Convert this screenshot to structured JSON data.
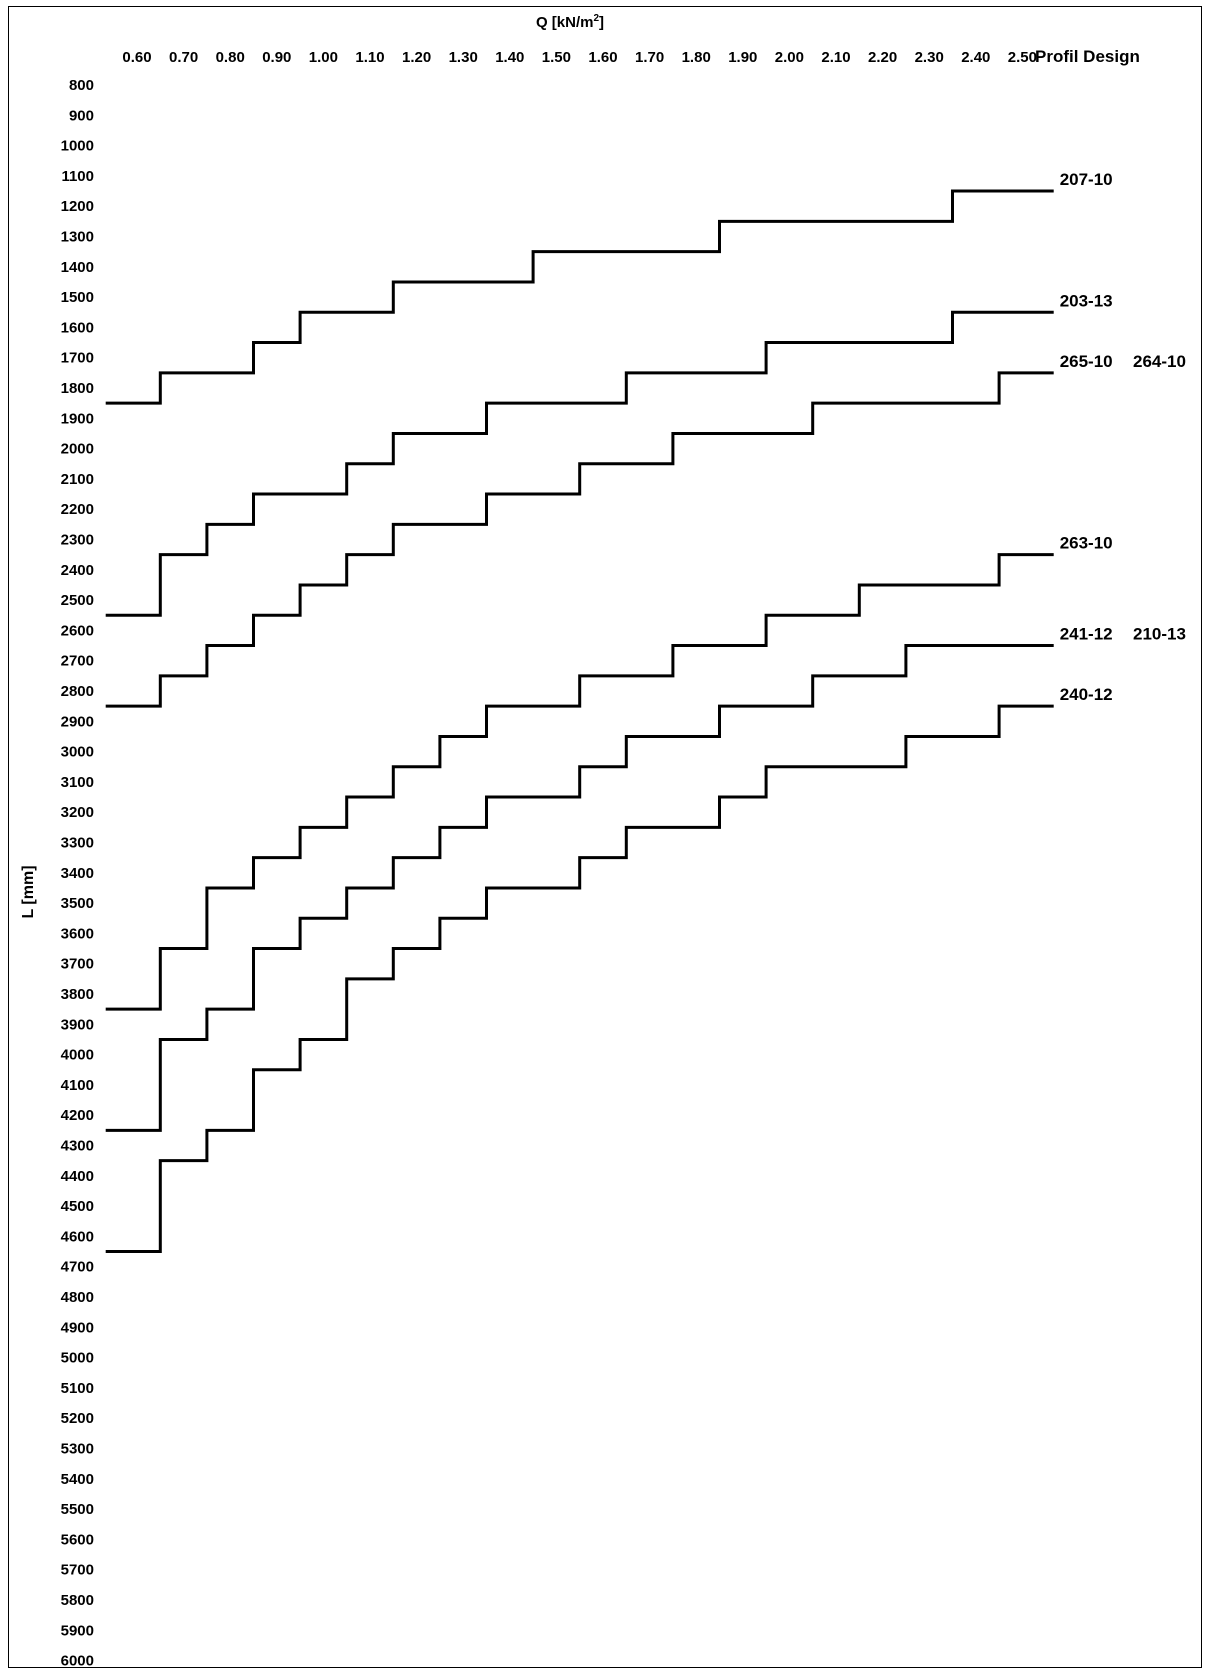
{
  "chart_data": {
    "type": "line",
    "step": true,
    "title": "Q [kN/m2]",
    "xlabel": "Q [kN/m2]",
    "ylabel": "L [mm]",
    "y_axis_inverted": true,
    "x_ticks": [
      0.6,
      0.7,
      0.8,
      0.9,
      1.0,
      1.1,
      1.2,
      1.3,
      1.4,
      1.5,
      1.6,
      1.7,
      1.8,
      1.9,
      2.0,
      2.1,
      2.2,
      2.3,
      2.4,
      2.5
    ],
    "x_tick_labels": [
      "0.60",
      "0.70",
      "0.80",
      "0.90",
      "1.00",
      "1.10",
      "1.20",
      "1.30",
      "1.40",
      "1.50",
      "1.60",
      "1.70",
      "1.80",
      "1.90",
      "2.00",
      "2.10",
      "2.20",
      "2.30",
      "2.40",
      "2.50"
    ],
    "y_ticks": [
      800,
      900,
      1000,
      1100,
      1200,
      1300,
      1400,
      1500,
      1600,
      1700,
      1800,
      1900,
      2000,
      2100,
      2200,
      2300,
      2400,
      2500,
      2600,
      2700,
      2800,
      2900,
      3000,
      3100,
      3200,
      3300,
      3400,
      3500,
      3600,
      3700,
      3800,
      3900,
      4000,
      4100,
      4200,
      4300,
      4400,
      4500,
      4600,
      4700,
      4800,
      4900,
      5000,
      5100,
      5200,
      5300,
      5400,
      5500,
      5600,
      5700,
      5800,
      5900,
      6000
    ],
    "ylim": [
      800,
      6000
    ],
    "xlim": [
      0.55,
      2.55
    ],
    "legend_header": "Profil Design",
    "series": [
      {
        "name": "207-10",
        "x": [
          0.6,
          0.7,
          0.8,
          0.9,
          1.0,
          1.1,
          1.2,
          1.3,
          1.4,
          1.5,
          1.6,
          1.7,
          1.8,
          1.9,
          2.0,
          2.1,
          2.2,
          2.3,
          2.4,
          2.5
        ],
        "values": [
          1850,
          1750,
          1750,
          1650,
          1550,
          1550,
          1450,
          1450,
          1450,
          1350,
          1350,
          1350,
          1350,
          1250,
          1250,
          1250,
          1250,
          1250,
          1150,
          1150
        ]
      },
      {
        "name": "203-13",
        "x": [
          0.6,
          0.7,
          0.8,
          0.9,
          1.0,
          1.1,
          1.2,
          1.3,
          1.4,
          1.5,
          1.6,
          1.7,
          1.8,
          1.9,
          2.0,
          2.1,
          2.2,
          2.3,
          2.4,
          2.5
        ],
        "values": [
          2550,
          2350,
          2250,
          2150,
          2150,
          2050,
          1950,
          1950,
          1850,
          1850,
          1850,
          1750,
          1750,
          1750,
          1650,
          1650,
          1650,
          1650,
          1550,
          1550
        ]
      },
      {
        "name": "265-10",
        "extra_label": "264-10",
        "x": [
          0.6,
          0.7,
          0.8,
          0.9,
          1.0,
          1.1,
          1.2,
          1.3,
          1.4,
          1.5,
          1.6,
          1.7,
          1.8,
          1.9,
          2.0,
          2.1,
          2.2,
          2.3,
          2.4,
          2.5
        ],
        "values": [
          2850,
          2750,
          2650,
          2550,
          2450,
          2350,
          2250,
          2250,
          2150,
          2150,
          2050,
          2050,
          1950,
          1950,
          1950,
          1850,
          1850,
          1850,
          1850,
          1750
        ]
      },
      {
        "name": "263-10",
        "x": [
          0.6,
          0.7,
          0.8,
          0.9,
          1.0,
          1.1,
          1.2,
          1.3,
          1.4,
          1.5,
          1.6,
          1.7,
          1.8,
          1.9,
          2.0,
          2.1,
          2.2,
          2.3,
          2.4,
          2.5
        ],
        "values": [
          3850,
          3650,
          3450,
          3350,
          3250,
          3150,
          3050,
          2950,
          2850,
          2850,
          2750,
          2750,
          2650,
          2650,
          2550,
          2550,
          2450,
          2450,
          2450,
          2350
        ]
      },
      {
        "name": "241-12",
        "extra_label": "210-13",
        "x": [
          0.6,
          0.7,
          0.8,
          0.9,
          1.0,
          1.1,
          1.2,
          1.3,
          1.4,
          1.5,
          1.6,
          1.7,
          1.8,
          1.9,
          2.0,
          2.1,
          2.2,
          2.3,
          2.4,
          2.5
        ],
        "values": [
          4250,
          3950,
          3850,
          3650,
          3550,
          3450,
          3350,
          3250,
          3150,
          3150,
          3050,
          2950,
          2950,
          2850,
          2850,
          2750,
          2750,
          2650,
          2650,
          2650
        ]
      },
      {
        "name": "240-12",
        "x": [
          0.6,
          0.7,
          0.8,
          0.9,
          1.0,
          1.1,
          1.2,
          1.3,
          1.4,
          1.5,
          1.6,
          1.7,
          1.8,
          1.9,
          2.0,
          2.1,
          2.2,
          2.3,
          2.4,
          2.5
        ],
        "values": [
          4650,
          4350,
          4250,
          4050,
          3950,
          3750,
          3650,
          3550,
          3450,
          3450,
          3350,
          3250,
          3250,
          3150,
          3050,
          3050,
          3050,
          2950,
          2950,
          2850
        ]
      }
    ]
  }
}
